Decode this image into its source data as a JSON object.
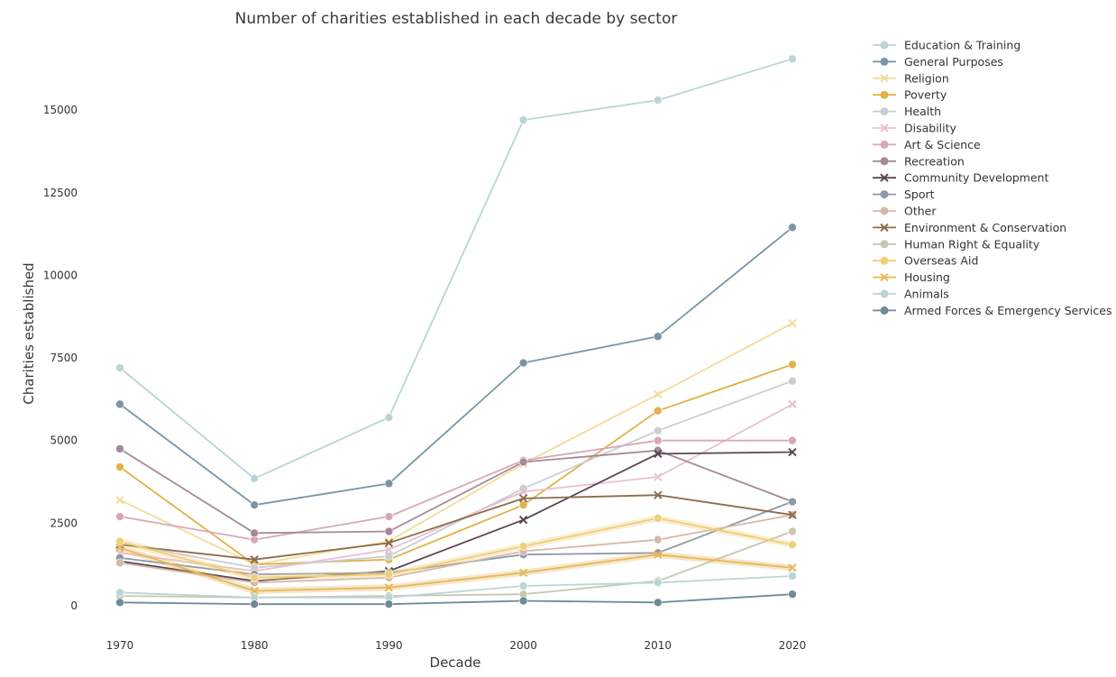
{
  "chart_data": {
    "type": "line",
    "title": "Number of charities established in each decade by sector",
    "xlabel": "Decade",
    "ylabel": "Charities established",
    "x": [
      1970,
      1980,
      1990,
      2000,
      2010,
      2020
    ],
    "xticks": [
      "1970",
      "1980",
      "1990",
      "2000",
      "2010",
      "2020"
    ],
    "yticks": [
      "0",
      "2500",
      "5000",
      "7500",
      "10000",
      "12500",
      "15000"
    ],
    "ylim": [
      -700,
      17000
    ],
    "grid": false,
    "legend_position": "outside-right",
    "series": [
      {
        "name": "Education & Training",
        "color": "#b9d5d6",
        "values": [
          7200,
          3850,
          5700,
          14700,
          15300,
          16550
        ]
      },
      {
        "name": "General Purposes",
        "color": "#7896a6",
        "values": [
          6100,
          3050,
          3700,
          7350,
          8150,
          11450
        ]
      },
      {
        "name": "Religion",
        "color": "#f0dd99",
        "values": [
          3200,
          1250,
          1950,
          4300,
          6400,
          8550
        ]
      },
      {
        "name": "Poverty",
        "color": "#e0b24a",
        "values": [
          4200,
          1250,
          1400,
          3050,
          5900,
          7300
        ]
      },
      {
        "name": "Health",
        "color": "#c9ced3",
        "values": [
          1900,
          1150,
          1500,
          3550,
          5300,
          6800
        ]
      },
      {
        "name": "Disability",
        "color": "#e8c0d0",
        "values": [
          1600,
          1050,
          1700,
          3450,
          3900,
          6100
        ]
      },
      {
        "name": "Art & Science",
        "color": "#d7a9b6",
        "values": [
          2700,
          2000,
          2700,
          4400,
          5000,
          5000
        ]
      },
      {
        "name": "Recreation",
        "color": "#a48a98",
        "values": [
          4750,
          2200,
          2250,
          4350,
          4700,
          3150
        ]
      },
      {
        "name": "Community Development",
        "color": "#5a4652",
        "values": [
          1350,
          750,
          1050,
          2600,
          4600,
          4650
        ]
      },
      {
        "name": "Sport",
        "color": "#8d99a8",
        "values": [
          1450,
          950,
          1000,
          1550,
          1600,
          3150
        ]
      },
      {
        "name": "Other",
        "color": "#d7b8a8",
        "values": [
          1300,
          700,
          850,
          1650,
          2000,
          2750
        ]
      },
      {
        "name": "Environment & Conservation",
        "color": "#8c6d4d",
        "values": [
          1850,
          1400,
          1900,
          3250,
          3350,
          2750
        ]
      },
      {
        "name": "Human Right & Equality",
        "color": "#c8c8b0",
        "values": [
          300,
          250,
          300,
          350,
          750,
          2250
        ]
      },
      {
        "name": "Overseas Aid",
        "color": "#f0cf7a",
        "values": [
          1950,
          850,
          950,
          1800,
          2650,
          1850
        ]
      },
      {
        "name": "Housing",
        "color": "#e6b85c",
        "values": [
          1750,
          450,
          550,
          1000,
          1550,
          1150
        ]
      },
      {
        "name": "Animals",
        "color": "#b9d5d6",
        "values": [
          400,
          250,
          250,
          600,
          700,
          900
        ]
      },
      {
        "name": "Armed Forces & Emergency Services",
        "color": "#6e8a96",
        "values": [
          100,
          50,
          50,
          150,
          100,
          350
        ]
      }
    ]
  }
}
